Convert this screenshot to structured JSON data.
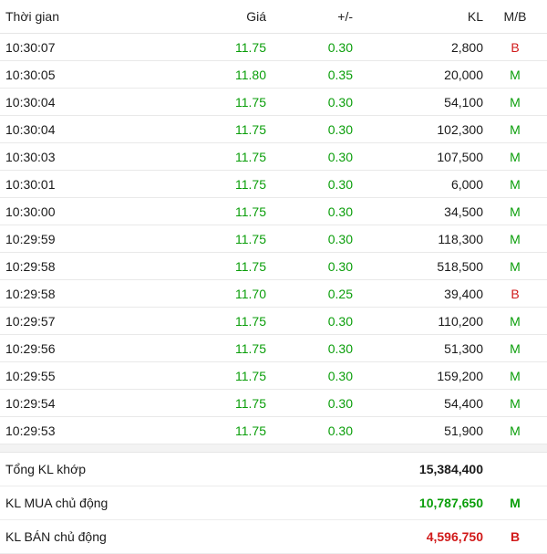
{
  "header": {
    "time": "Thời gian",
    "price": "Giá",
    "change": "+/-",
    "volume": "KL",
    "mb": "M/B"
  },
  "trades": [
    {
      "time": "10:30:07",
      "price": "11.75",
      "change": "0.30",
      "volume": "2,800",
      "mb": "B"
    },
    {
      "time": "10:30:05",
      "price": "11.80",
      "change": "0.35",
      "volume": "20,000",
      "mb": "M"
    },
    {
      "time": "10:30:04",
      "price": "11.75",
      "change": "0.30",
      "volume": "54,100",
      "mb": "M"
    },
    {
      "time": "10:30:04",
      "price": "11.75",
      "change": "0.30",
      "volume": "102,300",
      "mb": "M"
    },
    {
      "time": "10:30:03",
      "price": "11.75",
      "change": "0.30",
      "volume": "107,500",
      "mb": "M"
    },
    {
      "time": "10:30:01",
      "price": "11.75",
      "change": "0.30",
      "volume": "6,000",
      "mb": "M"
    },
    {
      "time": "10:30:00",
      "price": "11.75",
      "change": "0.30",
      "volume": "34,500",
      "mb": "M"
    },
    {
      "time": "10:29:59",
      "price": "11.75",
      "change": "0.30",
      "volume": "118,300",
      "mb": "M"
    },
    {
      "time": "10:29:58",
      "price": "11.75",
      "change": "0.30",
      "volume": "518,500",
      "mb": "M"
    },
    {
      "time": "10:29:58",
      "price": "11.70",
      "change": "0.25",
      "volume": "39,400",
      "mb": "B"
    },
    {
      "time": "10:29:57",
      "price": "11.75",
      "change": "0.30",
      "volume": "110,200",
      "mb": "M"
    },
    {
      "time": "10:29:56",
      "price": "11.75",
      "change": "0.30",
      "volume": "51,300",
      "mb": "M"
    },
    {
      "time": "10:29:55",
      "price": "11.75",
      "change": "0.30",
      "volume": "159,200",
      "mb": "M"
    },
    {
      "time": "10:29:54",
      "price": "11.75",
      "change": "0.30",
      "volume": "54,400",
      "mb": "M"
    },
    {
      "time": "10:29:53",
      "price": "11.75",
      "change": "0.30",
      "volume": "51,900",
      "mb": "M"
    }
  ],
  "summary": {
    "total_label": "Tổng KL khớp",
    "total_value": "15,384,400",
    "buy_label": "KL MUA chủ động",
    "buy_value": "10,787,650",
    "buy_mb": "M",
    "sell_label": "KL BÁN chủ động",
    "sell_value": "4,596,750",
    "sell_mb": "B"
  },
  "colors": {
    "up": "#0a9e0a",
    "buy": "#0a9e0a",
    "sell": "#d11a1a"
  }
}
